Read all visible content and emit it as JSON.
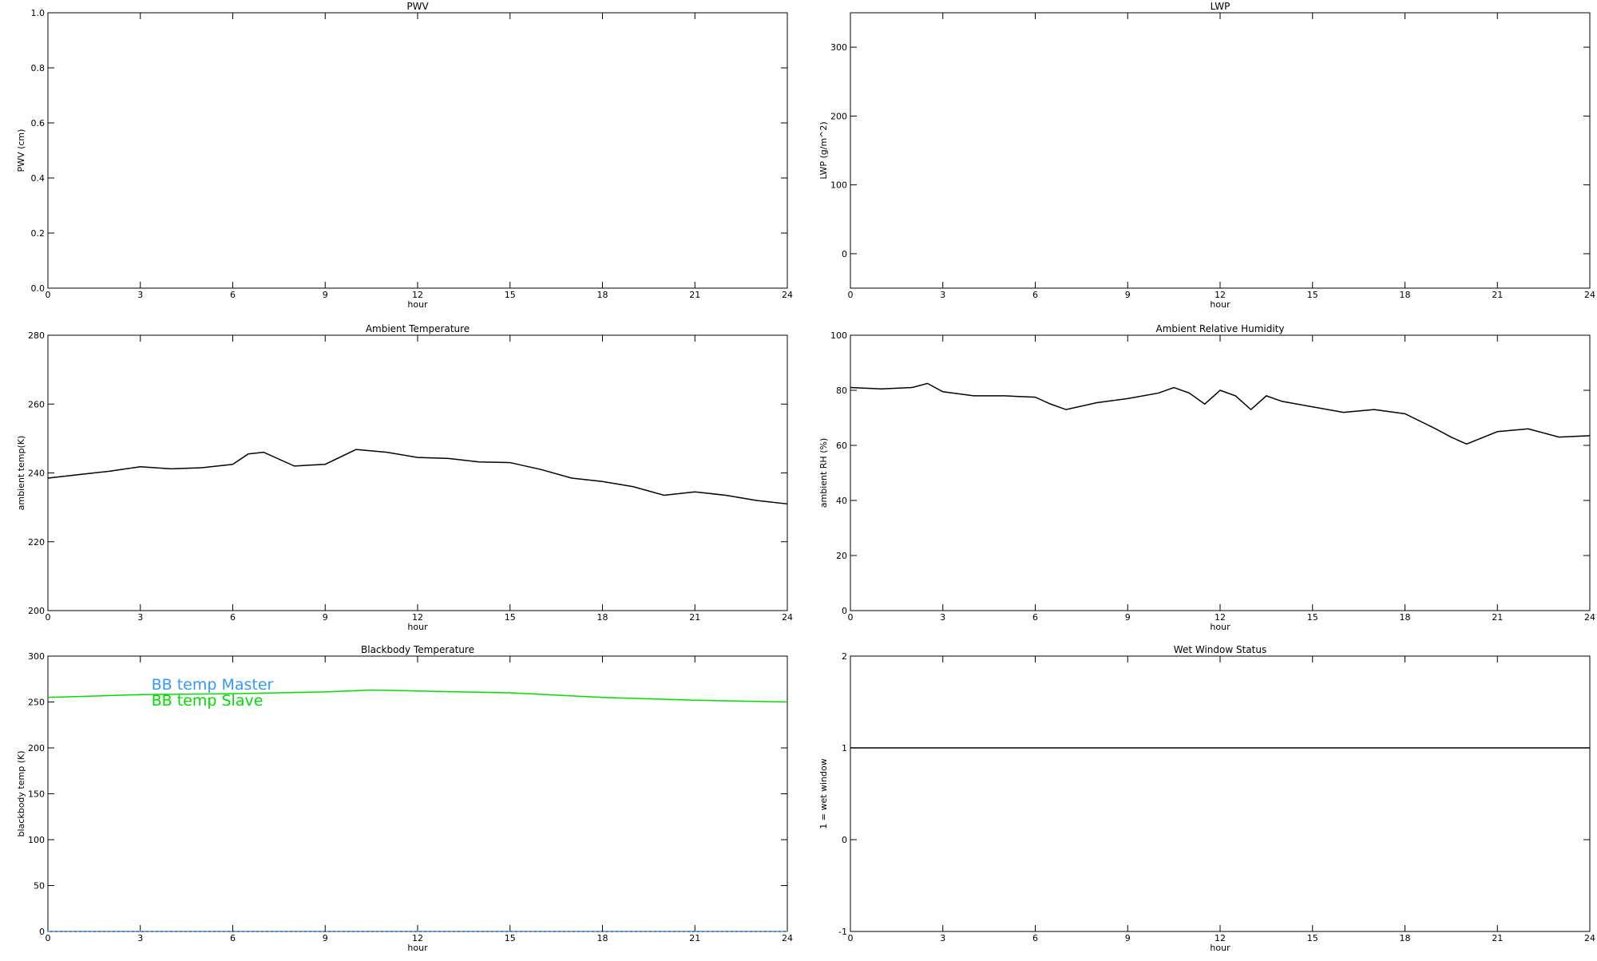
{
  "chart_data": [
    {
      "type": "line",
      "title": "PWV",
      "xlabel": "hour",
      "ylabel": "PWV (cm)",
      "xlim": [
        0,
        24
      ],
      "xticks": [
        0,
        3,
        6,
        9,
        12,
        15,
        18,
        21,
        24
      ],
      "ylim": [
        0,
        1
      ],
      "yticks": [
        {
          "value": 0,
          "label": "0.0"
        },
        {
          "value": 0.2,
          "label": "0.2"
        },
        {
          "value": 0.4,
          "label": "0.4"
        },
        {
          "value": 0.6,
          "label": "0.6"
        },
        {
          "value": 0.8,
          "label": "0.8"
        },
        {
          "value": 1,
          "label": "1.0"
        }
      ],
      "x": [],
      "series": []
    },
    {
      "type": "line",
      "title": "LWP",
      "xlabel": "hour",
      "ylabel": "LWP (g/m^2)",
      "xlim": [
        0,
        24
      ],
      "xticks": [
        0,
        3,
        6,
        9,
        12,
        15,
        18,
        21,
        24
      ],
      "ylim": [
        -50,
        350
      ],
      "yticks": [
        0,
        100,
        200,
        300
      ],
      "x": [],
      "series": []
    },
    {
      "type": "line",
      "title": "Ambient Temperature",
      "xlabel": "hour",
      "ylabel": "ambient temp(K)",
      "xlim": [
        0,
        24
      ],
      "xticks": [
        0,
        3,
        6,
        9,
        12,
        15,
        18,
        21,
        24
      ],
      "ylim": [
        200,
        280
      ],
      "yticks": [
        200,
        220,
        240,
        260,
        280
      ],
      "x": [
        0,
        1,
        2,
        3,
        4,
        5,
        6,
        6.5,
        7,
        8,
        9,
        10,
        11,
        12,
        13,
        14,
        15,
        16,
        17,
        18,
        19,
        20,
        21,
        22,
        23,
        24
      ],
      "series": [
        {
          "color": "#000000",
          "values": [
            238.5,
            239.5,
            240.5,
            241.8,
            241.2,
            241.5,
            242.5,
            245.5,
            246,
            242,
            242.5,
            246.8,
            246,
            244.5,
            244.2,
            243.2,
            243,
            241,
            238.5,
            237.5,
            236,
            233.5,
            234.5,
            233.5,
            232,
            231
          ]
        }
      ]
    },
    {
      "type": "line",
      "title": "Ambient Relative Humidity",
      "xlabel": "hour",
      "ylabel": "ambient RH (%)",
      "xlim": [
        0,
        24
      ],
      "xticks": [
        0,
        3,
        6,
        9,
        12,
        15,
        18,
        21,
        24
      ],
      "ylim": [
        0,
        100
      ],
      "yticks": [
        0,
        20,
        40,
        60,
        80,
        100
      ],
      "x": [
        0,
        1,
        2,
        2.5,
        3,
        4,
        5,
        6,
        6.5,
        7,
        8,
        9,
        10,
        10.5,
        11,
        11.5,
        12,
        12.5,
        13,
        13.5,
        14,
        15,
        16,
        17,
        18,
        19,
        19.5,
        20,
        21,
        22,
        23,
        24
      ],
      "series": [
        {
          "color": "#000000",
          "values": [
            81,
            80.5,
            81,
            82.5,
            79.5,
            78,
            78,
            77.5,
            75,
            73,
            75.5,
            77,
            79,
            81,
            79,
            75,
            80,
            78,
            73,
            78,
            76,
            74,
            72,
            73,
            71.5,
            66,
            63,
            60.5,
            65,
            66,
            63,
            63.5
          ]
        }
      ]
    },
    {
      "type": "line",
      "title": "Blackbody Temperature",
      "xlabel": "hour",
      "ylabel": "blackbody temp (K)",
      "xlim": [
        0,
        24
      ],
      "xticks": [
        0,
        3,
        6,
        9,
        12,
        15,
        18,
        21,
        24
      ],
      "ylim": [
        0,
        300
      ],
      "yticks": [
        0,
        50,
        100,
        150,
        200,
        250,
        300
      ],
      "legend": "upper left",
      "x": [
        0,
        3,
        6,
        9,
        10.5,
        12,
        15,
        18,
        21,
        24
      ],
      "series": [
        {
          "name": "BB temp Master",
          "color": "#3399ff",
          "values": [
            0,
            0,
            0,
            0,
            0,
            0,
            0,
            0,
            0,
            0
          ]
        },
        {
          "name": "BB temp Slave",
          "color": "#00dd00",
          "values": [
            255,
            258,
            259,
            261,
            263,
            262,
            260,
            255,
            252,
            250
          ]
        }
      ]
    },
    {
      "type": "line",
      "title": "Wet Window Status",
      "xlabel": "hour",
      "ylabel": "1 = wet window",
      "xlim": [
        0,
        24
      ],
      "xticks": [
        0,
        3,
        6,
        9,
        12,
        15,
        18,
        21,
        24
      ],
      "ylim": [
        -1,
        2
      ],
      "yticks": [
        -1,
        0,
        1,
        2
      ],
      "x": [
        0,
        24
      ],
      "series": [
        {
          "color": "#000000",
          "values": [
            1,
            1
          ]
        }
      ]
    }
  ]
}
